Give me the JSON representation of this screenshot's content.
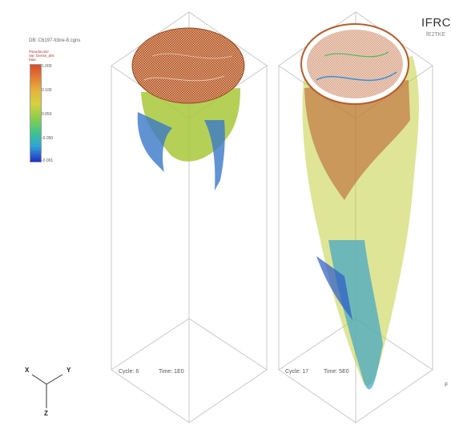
{
  "dataset_label": "DB: C6197-fcbre-8.cgns",
  "legend": {
    "title_lines": [
      "Pseudocolor",
      "Var: Dense_dist",
      "Max:"
    ],
    "ticks": [
      "1.000",
      "0.100",
      "0.050",
      "-0.050",
      "-0.001"
    ],
    "colormap": [
      "#d84a2a",
      "#e27833",
      "#e6b23a",
      "#d8d040",
      "#8ccf4a",
      "#3fc48e",
      "#2fa4d8",
      "#2230c8"
    ]
  },
  "header": {
    "title": "IFRC",
    "subtitle": "fE2TKE"
  },
  "panels": [
    {
      "cycle_label": "Cycle: 6",
      "time_label": "Time: 1E0"
    },
    {
      "cycle_label": "Cycle: 17",
      "time_label": "Time: 5E0"
    }
  ],
  "axes_triad": {
    "x": "X",
    "y": "Y",
    "z": "Z"
  },
  "edge_char": "F"
}
